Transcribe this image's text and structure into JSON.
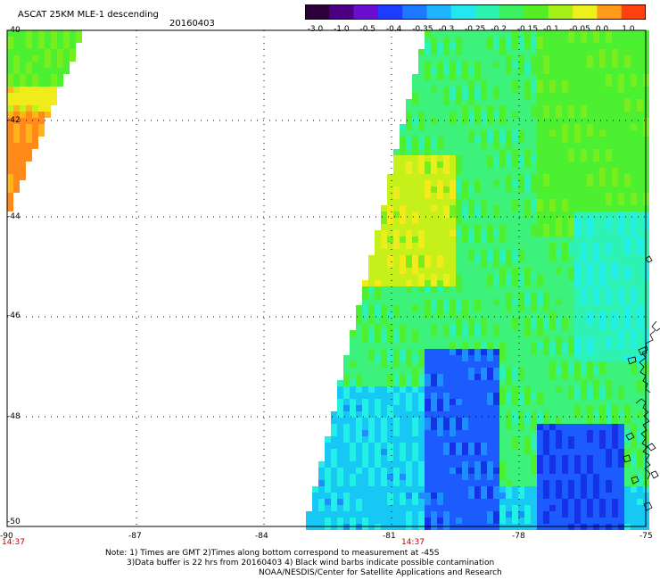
{
  "header": {
    "title": "ASCAT 25KM MLE-1 descending",
    "date": "20160403"
  },
  "colorbar": {
    "labels": [
      "-3.0",
      "-1.0",
      "-0.5",
      "-0.4",
      "-0.35",
      "-0.3",
      "-0.25",
      "-0.2",
      "-0.15",
      "-0.1",
      "-0.05",
      "0.0",
      "1.0"
    ],
    "colors": [
      "#2b0038",
      "#4b0082",
      "#6a0fd0",
      "#1c3cff",
      "#1e78ff",
      "#1fb4ff",
      "#22e6f0",
      "#2ef2b0",
      "#3cf060",
      "#55ee22",
      "#a6f01a",
      "#eef01c",
      "#ff9a1a",
      "#ff4010"
    ]
  },
  "map": {
    "lat_labels": [
      "-40",
      "-42",
      "-44",
      "-46",
      "-48",
      "-50"
    ],
    "lon_labels": [
      "-90",
      "-87",
      "-84",
      "-81",
      "-78",
      "-75"
    ],
    "times": [
      "14:37",
      "14:37"
    ],
    "colors": {
      "grid": "#000000",
      "time": "#cc0000"
    }
  },
  "footer": {
    "line1": "Note: 1) Times are GMT 2)Times along bottom correspond to measurement at -45S",
    "line2": "3)Data buffer is 22 hrs from 20160403 4) Black wind barbs indicate possible contamination",
    "line3": "NOAA/NESDIS/Center for Satellite Applications and Research"
  }
}
